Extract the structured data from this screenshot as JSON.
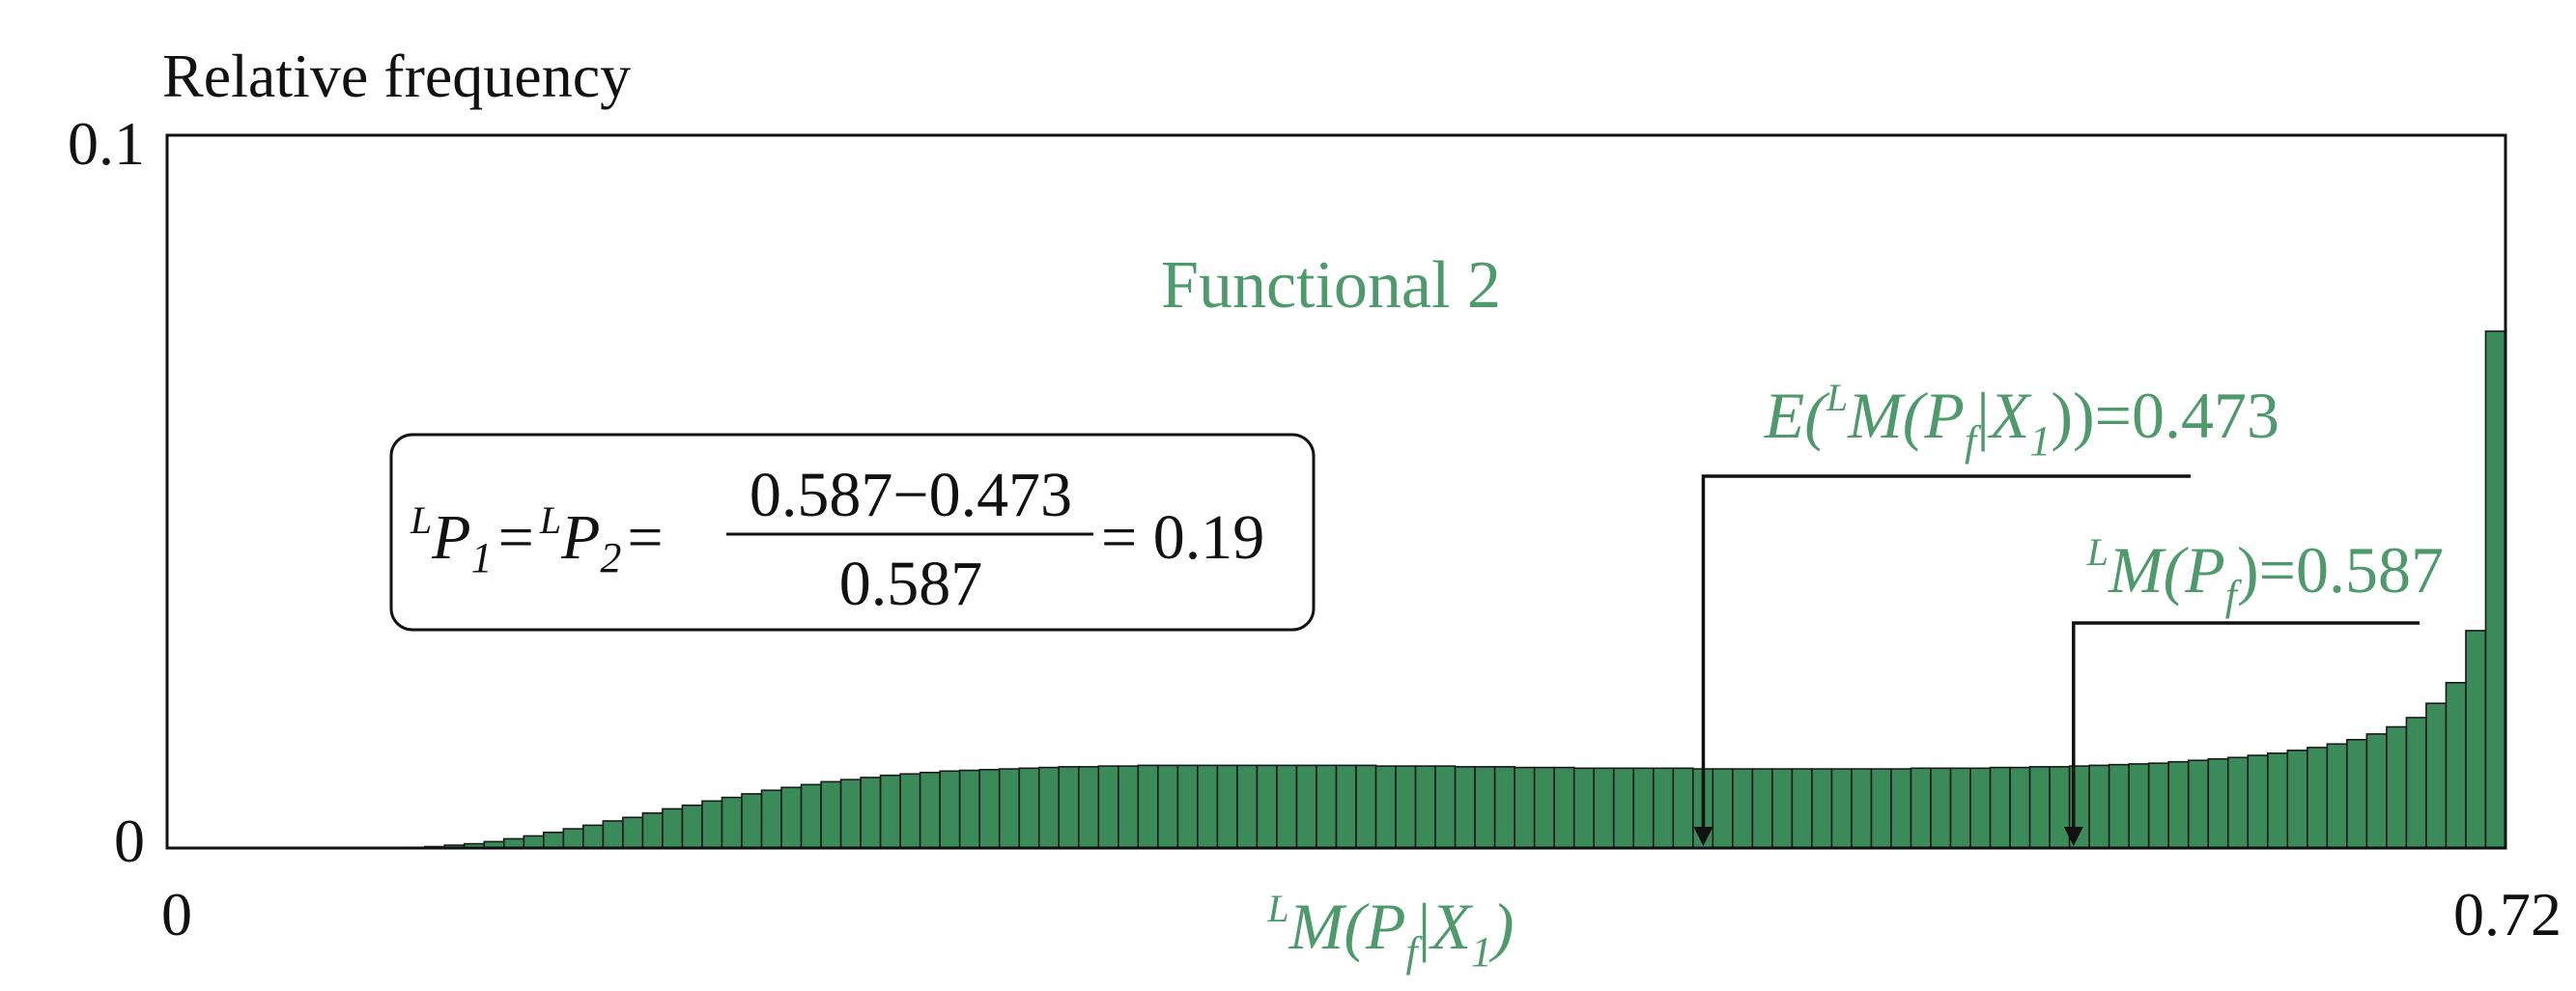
{
  "chart_data": {
    "type": "bar",
    "ylabel": "Relative frequency",
    "xlabel_parts": {
      "sup": "L",
      "main": "M(P",
      "sub_f": "f",
      "bar": "|",
      "x": "X",
      "sub_1": "1",
      "close": ")"
    },
    "title": "Functional 2",
    "xlim": [
      0,
      0.72
    ],
    "ylim": [
      0,
      0.1
    ],
    "x_tick_labels": [
      "0",
      "0.72"
    ],
    "y_tick_labels": [
      "0",
      "0.1"
    ],
    "colors": {
      "bar_fill": "#3a8a5a",
      "bar_edge": "#1a1a1a",
      "accent_text": "#4e9a6c",
      "axis": "#111111"
    },
    "values": [
      0.0,
      0.0,
      0.0,
      0.0,
      0.0,
      0.0,
      0.0,
      0.0,
      0.0,
      0.0,
      0.0,
      0.0,
      0.0001,
      0.0002,
      0.0004,
      0.0006,
      0.0009,
      0.0013,
      0.0017,
      0.0022,
      0.0027,
      0.0032,
      0.0038,
      0.0043,
      0.0049,
      0.0055,
      0.006,
      0.0066,
      0.0071,
      0.0076,
      0.0081,
      0.0085,
      0.0089,
      0.0093,
      0.0096,
      0.0099,
      0.0102,
      0.0104,
      0.0106,
      0.0108,
      0.0109,
      0.011,
      0.0111,
      0.0112,
      0.0113,
      0.0114,
      0.0114,
      0.0115,
      0.0115,
      0.0116,
      0.0116,
      0.0116,
      0.0116,
      0.0116,
      0.0116,
      0.0116,
      0.0116,
      0.0116,
      0.0116,
      0.0116,
      0.0116,
      0.0115,
      0.0115,
      0.0115,
      0.0115,
      0.0114,
      0.0114,
      0.0114,
      0.0113,
      0.0113,
      0.0113,
      0.0112,
      0.0112,
      0.0112,
      0.0112,
      0.0112,
      0.0112,
      0.0111,
      0.0111,
      0.0111,
      0.0111,
      0.0111,
      0.0111,
      0.0111,
      0.0111,
      0.0111,
      0.0111,
      0.0111,
      0.0112,
      0.0112,
      0.0112,
      0.0112,
      0.0113,
      0.0113,
      0.0114,
      0.0114,
      0.0115,
      0.0116,
      0.0117,
      0.0118,
      0.0119,
      0.0121,
      0.0123,
      0.0125,
      0.0127,
      0.013,
      0.0133,
      0.0137,
      0.0141,
      0.0146,
      0.0152,
      0.016,
      0.017,
      0.0183,
      0.0203,
      0.0232,
      0.0305,
      0.0725
    ],
    "annotations": {
      "expected": {
        "x": 0.473,
        "label_parts": {
          "e": "E(",
          "sup": "L",
          "main": "M(P",
          "sub_f": "f",
          "bar": "|",
          "x": "X",
          "sub_1": "1",
          "close": "))=0.473"
        }
      },
      "mode": {
        "x": 0.587,
        "label_parts": {
          "sup": "L",
          "main": "M(P",
          "sub_f": "f",
          "close": ")=0.587"
        }
      }
    },
    "formula": {
      "lhs_sup1": "L",
      "lhs_p1": "P",
      "lhs_sub1": "1",
      "eq1": "=",
      "lhs_sup2": "L",
      "lhs_p2": "P",
      "lhs_sub2": "2",
      "eq2": "=",
      "numerator": "0.587−0.473",
      "denominator": "0.587",
      "result": "= 0.19"
    }
  }
}
